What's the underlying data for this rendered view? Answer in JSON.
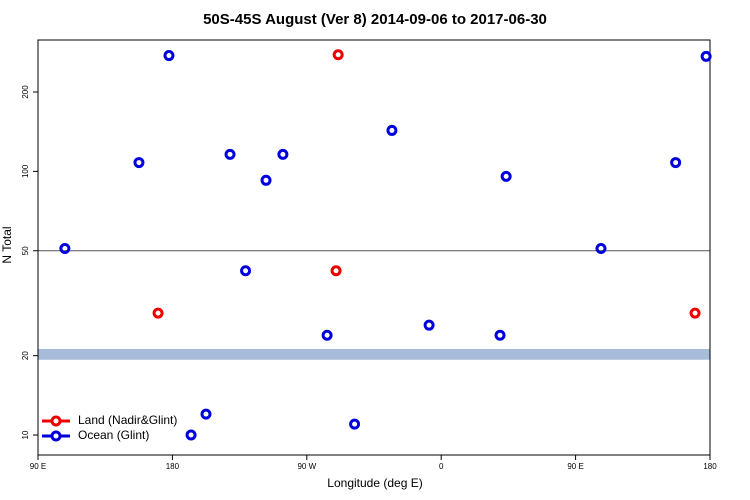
{
  "chart_data": {
    "type": "scatter",
    "title": "50S-45S August (Ver 8)   2014-09-06 to 2017-06-30",
    "x_label": "Longitude (deg E)",
    "y_label": "N Total",
    "log_y": true,
    "xlim": [
      90,
      540
    ],
    "ylim": [
      8.4,
      315
    ],
    "xticks": [
      {
        "value": 90,
        "label": "90 E"
      },
      180,
      {
        "value": 270,
        "label": "90 W"
      },
      {
        "value": 360,
        "label": "0"
      },
      {
        "value": 450,
        "label": "90 E"
      },
      {
        "value": 540,
        "label": "180"
      }
    ],
    "yticks": [
      10,
      20,
      50,
      100,
      200
    ],
    "reference_line": {
      "value": 50,
      "color": "#555555"
    },
    "band": {
      "range": [
        19.3,
        21.2
      ],
      "color": "#a7bcd9"
    },
    "legend": "bottom-left",
    "series": [
      {
        "name": "Land (Nadir&Glint)",
        "color": "#ee0000",
        "x": [
          291,
          289.6,
          170.4,
          530
        ],
        "values": [
          277,
          42,
          29,
          29
        ]
      },
      {
        "name": "Ocean (Glint)",
        "color": "#0000dd",
        "x": [
          108,
          157.6,
          177.7,
          218.6,
          242.7,
          254,
          229,
          283.6,
          302,
          327,
          351.9,
          399.4,
          403.5,
          467,
          517,
          537.4,
          192.5,
          202.5
        ],
        "values": [
          51,
          108,
          275,
          116,
          92.5,
          116,
          42,
          23.9,
          11,
          143,
          26.1,
          23.9,
          95.7,
          51,
          108,
          273,
          10,
          12
        ]
      }
    ]
  }
}
